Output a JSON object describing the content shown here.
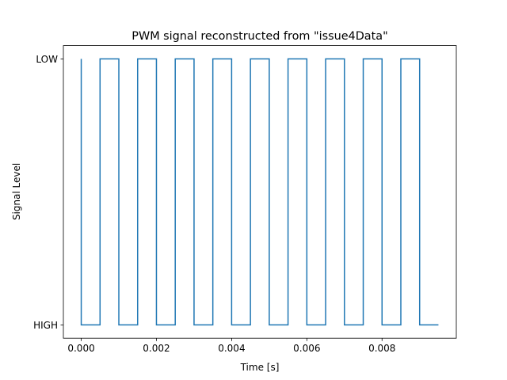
{
  "chart_data": {
    "type": "line",
    "title": "PWM signal reconstructed from \"issue4Data\"",
    "xlabel": "Time [s]",
    "ylabel": "Signal Level",
    "xlim": [
      -0.000475,
      0.009975
    ],
    "ylim": [
      -0.05,
      1.05
    ],
    "grid": false,
    "xticks": [
      0.0,
      0.002,
      0.004,
      0.006,
      0.008
    ],
    "xtick_labels": [
      "0.000",
      "0.002",
      "0.004",
      "0.006",
      "0.008"
    ],
    "yticks": [
      0,
      1
    ],
    "ytick_labels": [
      "HIGH",
      "LOW"
    ],
    "series": [
      {
        "color": "#1f77b4",
        "x": [
          0.0,
          0.0,
          0.0005,
          0.0005,
          0.001,
          0.001,
          0.0015,
          0.0015,
          0.002,
          0.002,
          0.0025,
          0.0025,
          0.003,
          0.003,
          0.0035,
          0.0035,
          0.004,
          0.004,
          0.0045,
          0.0045,
          0.005,
          0.005,
          0.0055,
          0.0055,
          0.006,
          0.006,
          0.0065,
          0.0065,
          0.007,
          0.007,
          0.0075,
          0.0075,
          0.008,
          0.008,
          0.0085,
          0.0085,
          0.009,
          0.009,
          0.0095
        ],
        "y": [
          1,
          0,
          0,
          1,
          1,
          0,
          0,
          1,
          1,
          0,
          0,
          1,
          1,
          0,
          0,
          1,
          1,
          0,
          0,
          1,
          1,
          0,
          0,
          1,
          1,
          0,
          0,
          1,
          1,
          0,
          0,
          1,
          1,
          0,
          0,
          1,
          1,
          0,
          0
        ]
      }
    ]
  }
}
